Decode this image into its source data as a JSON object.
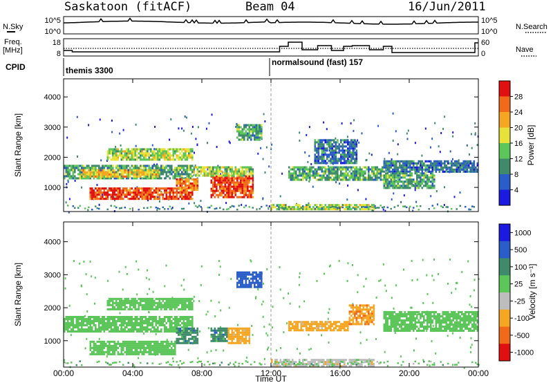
{
  "header": {
    "station": "Saskatoon (fitACF)",
    "beam": "Beam 04",
    "date": "16/Jun/2011"
  },
  "side_labels": {
    "nsky": "N.Sky",
    "freq_line1": "Freq.",
    "freq_line2": "[MHz]",
    "cpid": "CPID",
    "nsearch": "N.Search",
    "nave": "Nave"
  },
  "strip_ticks": {
    "noise_left": [
      "10^5",
      "10^0"
    ],
    "noise_right": [
      "10^5",
      "10^0"
    ],
    "freq_left": [
      "18",
      "8"
    ],
    "freq_right": [
      "60",
      "0"
    ]
  },
  "cpid_labels": [
    "themis 3300",
    "normalsound (fast) 157"
  ],
  "colors": {
    "power": [
      "#1a1ae0",
      "#2a5dc8",
      "#3f8a6a",
      "#5cc65a",
      "#e7e23a",
      "#f5a623",
      "#f06a1a",
      "#e01010"
    ],
    "velocity": [
      "#1a1ae0",
      "#2a5dc8",
      "#3f8a6a",
      "#5cc65a",
      "#bdbdbd",
      "#f5a623",
      "#f06a1a",
      "#e01010"
    ]
  },
  "chart_data": [
    {
      "type": "heatmap",
      "name": "power",
      "ylabel": "Slant Range [km]",
      "yticks": [
        "1000",
        "2000",
        "3000",
        "4000"
      ],
      "ylim": [
        200,
        4600
      ],
      "xlim": [
        0,
        24
      ],
      "colorbar_label": "Power [dB]",
      "colorbar_ticks": [
        "4",
        "8",
        "12",
        "16",
        "20",
        "24",
        "28"
      ],
      "clim": [
        0,
        32
      ],
      "regions": [
        {
          "t0": 0.0,
          "t1": 7.5,
          "r0": 1300,
          "r1": 1750,
          "level": 12
        },
        {
          "t0": 1.0,
          "t1": 5.5,
          "r0": 1350,
          "r1": 1600,
          "level": 20
        },
        {
          "t0": 2.5,
          "t1": 7.5,
          "r0": 1950,
          "r1": 2300,
          "level": 16
        },
        {
          "t0": 1.5,
          "t1": 7.5,
          "r0": 600,
          "r1": 1000,
          "level": 28
        },
        {
          "t0": 6.5,
          "t1": 7.8,
          "r0": 900,
          "r1": 1300,
          "level": 24
        },
        {
          "t0": 8.5,
          "t1": 11.0,
          "r0": 700,
          "r1": 1400,
          "level": 28
        },
        {
          "t0": 7.5,
          "t1": 11.0,
          "r0": 1400,
          "r1": 1700,
          "level": 16
        },
        {
          "t0": 10.0,
          "t1": 11.5,
          "r0": 2600,
          "r1": 3100,
          "level": 12
        },
        {
          "t0": 13.0,
          "t1": 18.5,
          "r0": 1250,
          "r1": 1700,
          "level": 12
        },
        {
          "t0": 14.5,
          "t1": 17.0,
          "r0": 1800,
          "r1": 2600,
          "level": 8
        },
        {
          "t0": 18.5,
          "t1": 24.0,
          "r0": 1500,
          "r1": 1900,
          "level": 8
        },
        {
          "t0": 18.5,
          "t1": 21.5,
          "r0": 1000,
          "r1": 1500,
          "level": 12
        },
        {
          "t0": 12.0,
          "t1": 18.0,
          "r0": 250,
          "r1": 450,
          "level": 16
        }
      ]
    },
    {
      "type": "heatmap",
      "name": "velocity",
      "ylabel": "Slant Range [km]",
      "yticks": [
        "1000",
        "2000",
        "3000",
        "4000"
      ],
      "ylim": [
        200,
        4600
      ],
      "xlim": [
        0,
        24
      ],
      "colorbar_label": "Velocity [m s⁻¹]",
      "colorbar_ticks": [
        "1000",
        "500",
        "100",
        "25",
        "-25",
        "-100",
        "-500",
        "-1000"
      ],
      "clim": [
        -1000,
        1000
      ],
      "regions": [
        {
          "t0": 0.0,
          "t1": 7.5,
          "r0": 1300,
          "r1": 1750,
          "level": 0
        },
        {
          "t0": 2.5,
          "t1": 7.5,
          "r0": 1950,
          "r1": 2300,
          "level": 0
        },
        {
          "t0": 1.5,
          "t1": 6.5,
          "r0": 600,
          "r1": 1000,
          "level": 0
        },
        {
          "t0": 6.5,
          "t1": 7.8,
          "r0": 900,
          "r1": 1400,
          "level": 60
        },
        {
          "t0": 8.5,
          "t1": 9.5,
          "r0": 1000,
          "r1": 1400,
          "level": 60
        },
        {
          "t0": 9.5,
          "t1": 10.8,
          "r0": 900,
          "r1": 1400,
          "level": -200
        },
        {
          "t0": 13.0,
          "t1": 16.5,
          "r0": 1300,
          "r1": 1600,
          "level": -200
        },
        {
          "t0": 16.5,
          "t1": 18.0,
          "r0": 1500,
          "r1": 2100,
          "level": -400
        },
        {
          "t0": 18.5,
          "t1": 24.0,
          "r0": 1300,
          "r1": 1900,
          "level": 0
        },
        {
          "t0": 10.0,
          "t1": 11.5,
          "r0": 2600,
          "r1": 3100,
          "level": 300
        },
        {
          "t0": 12.0,
          "t1": 18.0,
          "r0": 250,
          "r1": 450,
          "level": -60
        }
      ]
    }
  ],
  "xaxis": {
    "label": "Time UT",
    "ticks": [
      "00:00",
      "04:00",
      "08:00",
      "12:00",
      "16:00",
      "20:00",
      "00:00"
    ]
  }
}
